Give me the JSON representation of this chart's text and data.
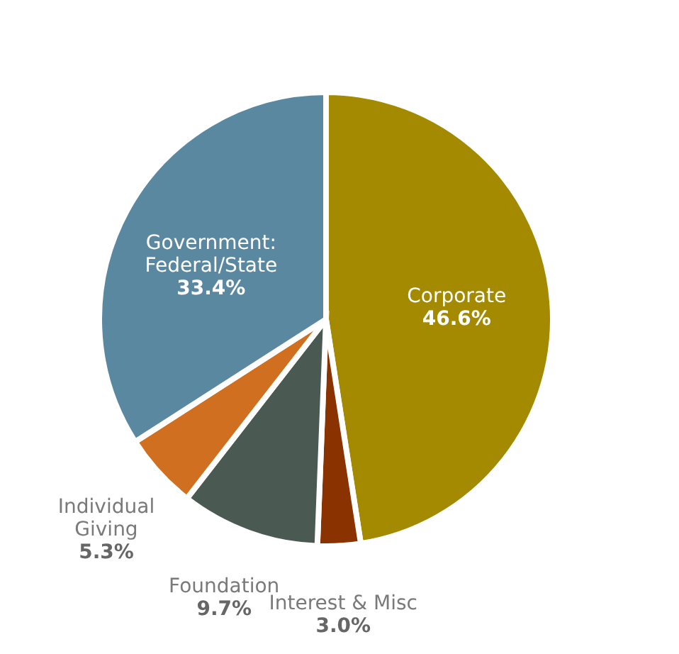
{
  "chart_data": {
    "type": "pie",
    "categories": [
      "Corporate",
      "Interest & Misc",
      "Foundation",
      "Individual Giving",
      "Government: Federal/State"
    ],
    "values": [
      46.6,
      3.0,
      9.7,
      5.3,
      33.4
    ],
    "value_labels": [
      "46.6%",
      "3.0%",
      "9.7%",
      "5.3%",
      "33.4%"
    ],
    "colors": [
      "#a38a00",
      "#8a3200",
      "#4a5952",
      "#d06f1f",
      "#5b88a1"
    ],
    "legend": false
  }
}
